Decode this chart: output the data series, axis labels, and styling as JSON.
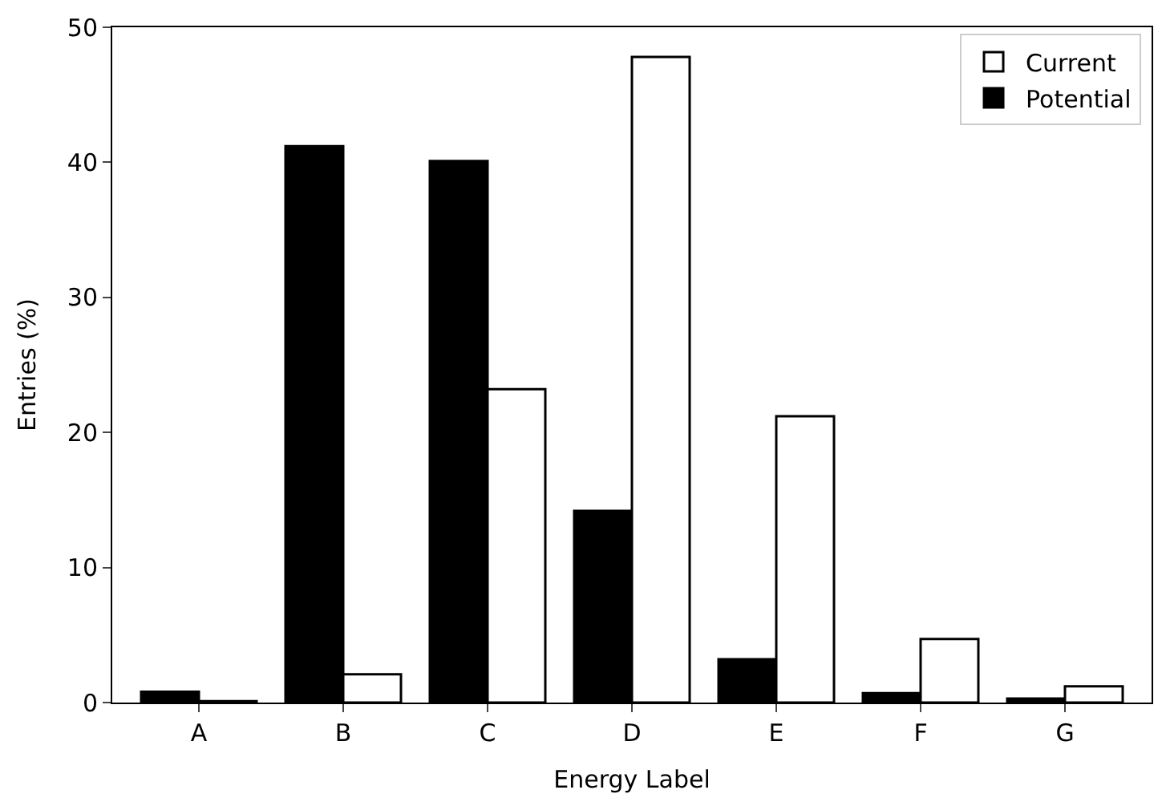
{
  "chart_data": {
    "type": "bar",
    "xlabel": "Energy Label",
    "ylabel": "Entries (%)",
    "categories": [
      "A",
      "B",
      "C",
      "D",
      "E",
      "F",
      "G"
    ],
    "series": [
      {
        "name": "Potential",
        "color": "#000000",
        "values": [
          0.8,
          41.2,
          40.1,
          14.2,
          3.2,
          0.7,
          0.3
        ]
      },
      {
        "name": "Current",
        "color": "#ffffff",
        "values": [
          0.1,
          2.1,
          23.2,
          47.8,
          21.2,
          4.7,
          1.2
        ]
      }
    ],
    "ylim": [
      0,
      50
    ],
    "yticks": [
      0,
      10,
      20,
      30,
      40,
      50
    ],
    "legend": "top right"
  }
}
